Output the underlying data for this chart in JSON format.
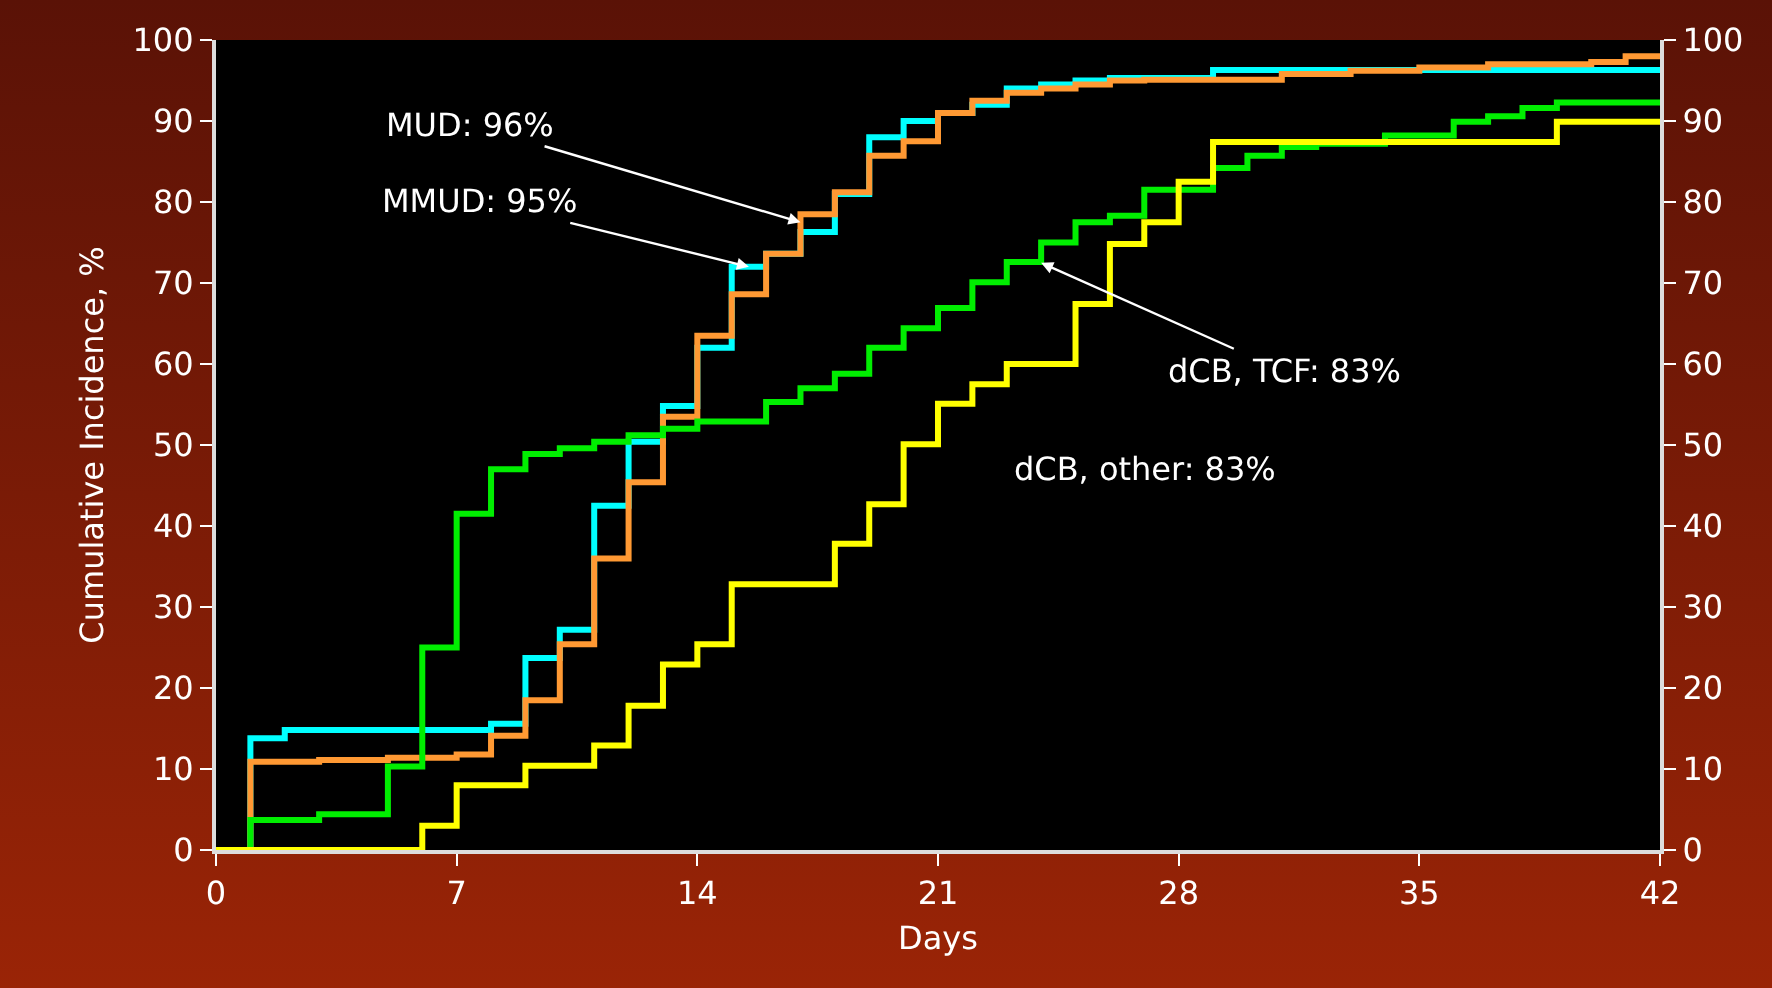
{
  "chart_data": {
    "type": "step",
    "xlabel": "Days",
    "ylabel": "Cumulative Incidence, %",
    "xlim": [
      0,
      42
    ],
    "xticks": [
      0,
      7,
      14,
      21,
      28,
      35,
      42
    ],
    "ylim": [
      0,
      100
    ],
    "yticks": [
      0,
      10,
      20,
      30,
      40,
      50,
      60,
      70,
      80,
      90,
      100
    ],
    "y2lim": [
      0,
      100
    ],
    "y2ticks": [
      0,
      10,
      20,
      30,
      40,
      50,
      60,
      70,
      80,
      90,
      100
    ],
    "grid": false,
    "annotations": [
      {
        "text": "MUD: 96%",
        "x": 17,
        "y": 77.5
      },
      {
        "text": "MMUD: 95%",
        "x": 15.5,
        "y": 72
      },
      {
        "text": "dCB, TCF: 83%",
        "x": 24,
        "y": 72.5
      },
      "dCB, other: 83%"
    ],
    "series": [
      {
        "color": "#00ffff",
        "x": [
          0,
          1,
          2,
          8,
          9,
          10,
          11,
          12,
          13,
          14,
          15,
          16,
          17,
          18,
          19,
          20,
          21,
          22,
          23,
          24,
          25,
          26,
          29,
          42
        ],
        "values": [
          0,
          13.8,
          14.8,
          15.6,
          23.7,
          27.2,
          42.5,
          50.4,
          54.8,
          62,
          72,
          73.6,
          76.3,
          81,
          88,
          90,
          91,
          92,
          94,
          94.5,
          95,
          95.3,
          96.3,
          96.3
        ]
      },
      {
        "color": "#ff9933",
        "x": [
          0,
          1,
          3,
          5,
          7,
          8,
          9,
          10,
          11,
          12,
          13,
          14,
          15,
          16,
          17,
          18,
          19,
          20,
          21,
          22,
          23,
          24,
          25,
          26,
          27,
          31,
          33,
          35,
          37,
          40,
          41,
          42
        ],
        "values": [
          0,
          10.9,
          11.1,
          11.4,
          11.8,
          14.1,
          18.5,
          25.4,
          36,
          45.4,
          53.5,
          63.5,
          68.6,
          73.6,
          78.5,
          81.2,
          85.7,
          87.5,
          91,
          92.5,
          93.5,
          94,
          94.5,
          95,
          95.1,
          95.8,
          96.2,
          96.6,
          97,
          97.3,
          98,
          98
        ]
      },
      {
        "color": "#00ee00",
        "x": [
          0,
          1,
          3,
          5,
          6,
          7,
          8,
          9,
          10,
          11,
          12,
          13,
          14,
          16,
          17,
          18,
          19,
          20,
          21,
          22,
          23,
          24,
          25,
          26,
          27,
          29,
          30,
          31,
          32,
          34,
          36,
          37,
          38,
          39,
          42
        ],
        "values": [
          0,
          3.7,
          4.4,
          10.3,
          25,
          41.5,
          47,
          48.9,
          49.6,
          50.4,
          51.2,
          52,
          52.9,
          55.3,
          57,
          58.8,
          62,
          64.4,
          66.9,
          70.1,
          72.6,
          75,
          77.5,
          78.3,
          81.5,
          84.2,
          85.7,
          86.8,
          87.2,
          88.2,
          89.9,
          90.6,
          91.6,
          92.3,
          92.3
        ]
      },
      {
        "color": "#ffff00",
        "x": [
          0,
          6,
          7,
          9,
          11,
          12,
          13,
          14,
          15,
          18,
          19,
          20,
          21,
          22,
          23,
          25,
          26,
          27,
          28,
          29,
          39,
          42
        ],
        "values": [
          0,
          3,
          8,
          10.4,
          12.9,
          17.8,
          22.9,
          25.4,
          32.8,
          37.8,
          42.7,
          50.1,
          55.1,
          57.5,
          60,
          67.4,
          74.8,
          77.5,
          82.5,
          87.4,
          89.9,
          89.9
        ]
      }
    ]
  }
}
